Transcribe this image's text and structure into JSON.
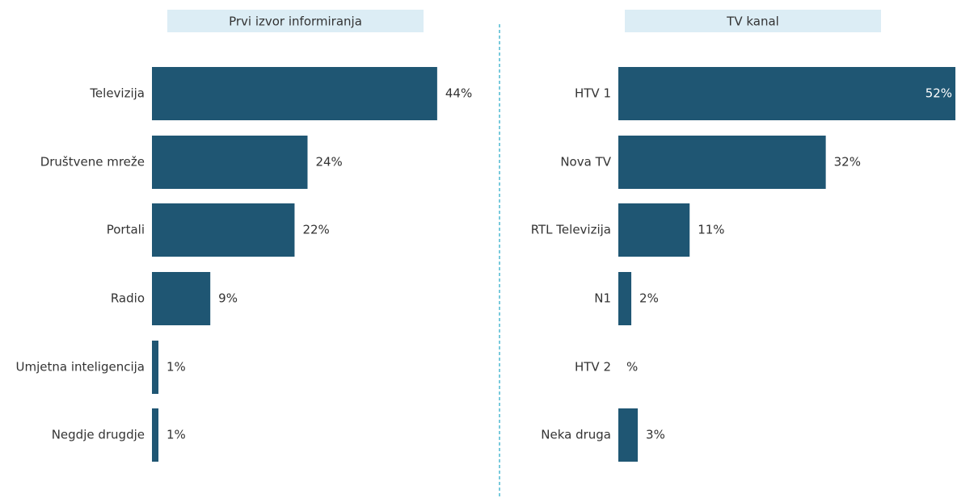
{
  "chart_data": [
    {
      "type": "bar",
      "orientation": "horizontal",
      "title": "Prvi izvor informiranja",
      "categories": [
        "Televizija",
        "Društvene mreže",
        "Portali",
        "Radio",
        "Umjetna inteligencija",
        "Negdje drugdje"
      ],
      "values": [
        44,
        24,
        22,
        9,
        1,
        1
      ],
      "value_labels": [
        "44%",
        "24%",
        "22%",
        "9%",
        "1%",
        "1%"
      ],
      "color": "#1f5673"
    },
    {
      "type": "bar",
      "orientation": "horizontal",
      "title": "TV kanal",
      "categories": [
        "HTV 1",
        "Nova TV",
        "RTL Televizija",
        "N1",
        "HTV 2",
        "Neka druga"
      ],
      "values": [
        52,
        32,
        11,
        2,
        0,
        3
      ],
      "value_labels": [
        "52%",
        "32%",
        "11%",
        "2%",
        "%",
        "3%"
      ],
      "color": "#1f5673"
    }
  ]
}
